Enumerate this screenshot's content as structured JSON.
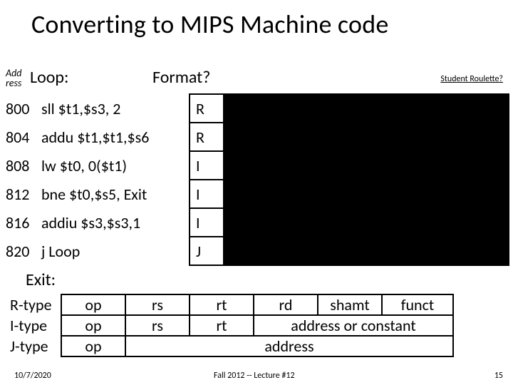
{
  "title": "Converting to MIPS Machine code",
  "addr_label_top": "Add",
  "addr_label_bot": "ress",
  "loop_label": "Loop:",
  "format_label": "Format?",
  "student_roulette": "Student Roulette?",
  "rows": [
    {
      "addr": "800",
      "instr": "sll $t1,$s3, 2",
      "fmt": "R"
    },
    {
      "addr": "804",
      "instr": "addu $t1,$t1,$s6",
      "fmt": "R"
    },
    {
      "addr": "808",
      "instr": "lw $t0, 0($t1)",
      "fmt": "I"
    },
    {
      "addr": "812",
      "instr": "bne $t0,$s5, Exit",
      "fmt": "I"
    },
    {
      "addr": "816",
      "instr": "addiu $s3,$s3,1",
      "fmt": "I"
    },
    {
      "addr": "820",
      "instr": "j Loop",
      "fmt": "J"
    }
  ],
  "exit_label": "Exit:",
  "format_rows": {
    "r": {
      "label": "R-type",
      "f": [
        "op",
        "rs",
        "rt",
        "rd",
        "shamt",
        "funct"
      ]
    },
    "i": {
      "label": "I-type",
      "f": [
        "op",
        "rs",
        "rt",
        "address or constant"
      ]
    },
    "j": {
      "label": "J-type",
      "f": [
        "op",
        "address"
      ]
    }
  },
  "footer": {
    "date": "10/7/2020",
    "center": "Fall 2012 -- Lecture #12",
    "page": "15"
  },
  "colors": {
    "bg": "#ffffff",
    "text": "#000000",
    "border": "#000000",
    "redact": "#000000"
  },
  "font_sizes": {
    "title": 36,
    "body": 22,
    "small": 12
  }
}
